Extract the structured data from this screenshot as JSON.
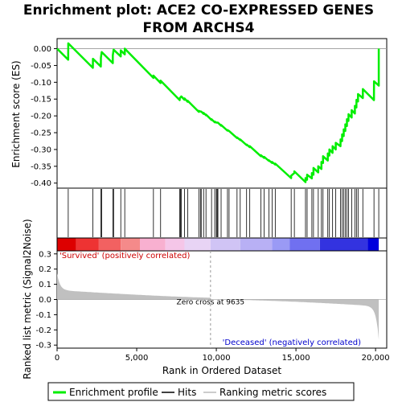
{
  "chart_data": {
    "type": "line",
    "title_lines": [
      "Enrichment plot: ACE2 CO-EXPRESSED GENES",
      "FROM ARCHS4"
    ],
    "xlabel": "Rank in Ordered Dataset",
    "es_ylabel": "Enrichment score (ES)",
    "metric_ylabel": "Ranked list metric (Signal2Noise)",
    "xlim": [
      0,
      20700
    ],
    "x_ticks": [
      0,
      5000,
      10000,
      15000,
      20000
    ],
    "x_tick_labels": [
      "0",
      "5,000",
      "10,000",
      "15,000",
      "20,000"
    ],
    "es_ylim": [
      -0.415,
      0.03
    ],
    "es_ticks": [
      0.0,
      -0.05,
      -0.1,
      -0.15,
      -0.2,
      -0.25,
      -0.3,
      -0.35,
      -0.4
    ],
    "es_tick_labels": [
      "0.00",
      "-0.05",
      "-0.10",
      "-0.15",
      "-0.20",
      "-0.25",
      "-0.30",
      "-0.35",
      "-0.40"
    ],
    "metric_ylim": [
      -0.32,
      0.32
    ],
    "metric_ticks": [
      0.3,
      0.2,
      0.1,
      0.0,
      -0.1,
      -0.2,
      -0.3
    ],
    "metric_tick_labels": [
      "0.3",
      "0.2",
      "0.1",
      "0.0",
      "-0.1",
      "-0.2",
      "-0.3"
    ],
    "zero_cross": 9635,
    "zero_cross_label": "Zero cross at 9635",
    "positive_label": "'Survived' (positively correlated)",
    "negative_label": "'Deceased' (negatively correlated)",
    "n_genes": 20200,
    "hits": [
      700,
      2250,
      2750,
      2800,
      3500,
      3550,
      4000,
      4250,
      6050,
      6500,
      7700,
      7750,
      7800,
      8000,
      8200,
      8900,
      9000,
      9050,
      9200,
      9350,
      9700,
      9900,
      10000,
      10050,
      10100,
      10300,
      10700,
      10800,
      11300,
      11500,
      11900,
      12100,
      12800,
      13000,
      13300,
      13500,
      13700,
      14700,
      14900,
      15600,
      15700,
      16000,
      16100,
      16400,
      16600,
      16700,
      17000,
      17100,
      17300,
      17500,
      17800,
      17900,
      18000,
      18100,
      18200,
      18300,
      18500,
      18700,
      18800,
      18900,
      19200,
      19900,
      20200
    ],
    "es_curve": [
      [
        0,
        0.0
      ],
      [
        699,
        -0.033
      ],
      [
        700,
        0.016
      ],
      [
        2249,
        -0.057
      ],
      [
        2250,
        -0.03
      ],
      [
        2749,
        -0.053
      ],
      [
        2750,
        -0.027
      ],
      [
        2800,
        -0.01
      ],
      [
        3499,
        -0.043
      ],
      [
        3500,
        -0.02
      ],
      [
        3550,
        -0.003
      ],
      [
        3999,
        -0.023
      ],
      [
        4000,
        -0.005
      ],
      [
        4249,
        -0.017
      ],
      [
        4250,
        0.0
      ],
      [
        6049,
        -0.087
      ],
      [
        6050,
        -0.08
      ],
      [
        6499,
        -0.102
      ],
      [
        6500,
        -0.095
      ],
      [
        7699,
        -0.153
      ],
      [
        7700,
        -0.148
      ],
      [
        7750,
        -0.145
      ],
      [
        7800,
        -0.142
      ],
      [
        7999,
        -0.152
      ],
      [
        8000,
        -0.148
      ],
      [
        8199,
        -0.158
      ],
      [
        8200,
        -0.155
      ],
      [
        8899,
        -0.188
      ],
      [
        8900,
        -0.185
      ],
      [
        9000,
        -0.187
      ],
      [
        9050,
        -0.187
      ],
      [
        9199,
        -0.194
      ],
      [
        9200,
        -0.191
      ],
      [
        9349,
        -0.198
      ],
      [
        9350,
        -0.196
      ],
      [
        9699,
        -0.212
      ],
      [
        9700,
        -0.21
      ],
      [
        9899,
        -0.219
      ],
      [
        9900,
        -0.217
      ],
      [
        10000,
        -0.22
      ],
      [
        10050,
        -0.22
      ],
      [
        10100,
        -0.22
      ],
      [
        10299,
        -0.229
      ],
      [
        10300,
        -0.227
      ],
      [
        10699,
        -0.244
      ],
      [
        10700,
        -0.242
      ],
      [
        10800,
        -0.245
      ],
      [
        11299,
        -0.266
      ],
      [
        11300,
        -0.264
      ],
      [
        11499,
        -0.272
      ],
      [
        11500,
        -0.27
      ],
      [
        11899,
        -0.287
      ],
      [
        11900,
        -0.285
      ],
      [
        12099,
        -0.293
      ],
      [
        12100,
        -0.29
      ],
      [
        12799,
        -0.32
      ],
      [
        12800,
        -0.317
      ],
      [
        12999,
        -0.325
      ],
      [
        13000,
        -0.322
      ],
      [
        13299,
        -0.334
      ],
      [
        13300,
        -0.332
      ],
      [
        13499,
        -0.34
      ],
      [
        13500,
        -0.337
      ],
      [
        13699,
        -0.345
      ],
      [
        13700,
        -0.342
      ],
      [
        14699,
        -0.385
      ],
      [
        14700,
        -0.378
      ],
      [
        14899,
        -0.37
      ],
      [
        14900,
        -0.365
      ],
      [
        15599,
        -0.397
      ],
      [
        15600,
        -0.385
      ],
      [
        15699,
        -0.39
      ],
      [
        15700,
        -0.375
      ],
      [
        15999,
        -0.386
      ],
      [
        16000,
        -0.37
      ],
      [
        16099,
        -0.375
      ],
      [
        16100,
        -0.355
      ],
      [
        16399,
        -0.368
      ],
      [
        16400,
        -0.35
      ],
      [
        16599,
        -0.358
      ],
      [
        16600,
        -0.337
      ],
      [
        16699,
        -0.34
      ],
      [
        16700,
        -0.32
      ],
      [
        16999,
        -0.333
      ],
      [
        17000,
        -0.312
      ],
      [
        17099,
        -0.318
      ],
      [
        17100,
        -0.3
      ],
      [
        17299,
        -0.31
      ],
      [
        17300,
        -0.29
      ],
      [
        17499,
        -0.3
      ],
      [
        17500,
        -0.28
      ],
      [
        17799,
        -0.29
      ],
      [
        17800,
        -0.27
      ],
      [
        17899,
        -0.275
      ],
      [
        17900,
        -0.255
      ],
      [
        17999,
        -0.26
      ],
      [
        18000,
        -0.24
      ],
      [
        18099,
        -0.245
      ],
      [
        18100,
        -0.225
      ],
      [
        18199,
        -0.23
      ],
      [
        18200,
        -0.21
      ],
      [
        18299,
        -0.215
      ],
      [
        18300,
        -0.195
      ],
      [
        18499,
        -0.205
      ],
      [
        18500,
        -0.183
      ],
      [
        18699,
        -0.193
      ],
      [
        18700,
        -0.17
      ],
      [
        18799,
        -0.175
      ],
      [
        18800,
        -0.152
      ],
      [
        18899,
        -0.157
      ],
      [
        18900,
        -0.135
      ],
      [
        19199,
        -0.147
      ],
      [
        19200,
        -0.12
      ],
      [
        19899,
        -0.153
      ],
      [
        19900,
        -0.097
      ],
      [
        20199,
        -0.11
      ],
      [
        20200,
        0.0
      ]
    ]
  },
  "legend": {
    "items": [
      {
        "label": "Enrichment profile",
        "color": "#00ee00"
      },
      {
        "label": "Hits",
        "color": "#000000"
      },
      {
        "label": "Ranking metric scores",
        "color": "#bbbbbb"
      }
    ]
  },
  "colors": {
    "curve": "#00ee00",
    "metric_fill": "#c0c0c0",
    "hits": "#000000",
    "bar_segments": [
      "#dd0000",
      "#ee3333",
      "#f26161",
      "#f58a8a",
      "#f8b0d0",
      "#f5c6e8",
      "#e8d4f5",
      "#d0c4f5",
      "#b8b0f5",
      "#9a9af5",
      "#7070f0",
      "#3333e0",
      "#0000dd"
    ]
  }
}
